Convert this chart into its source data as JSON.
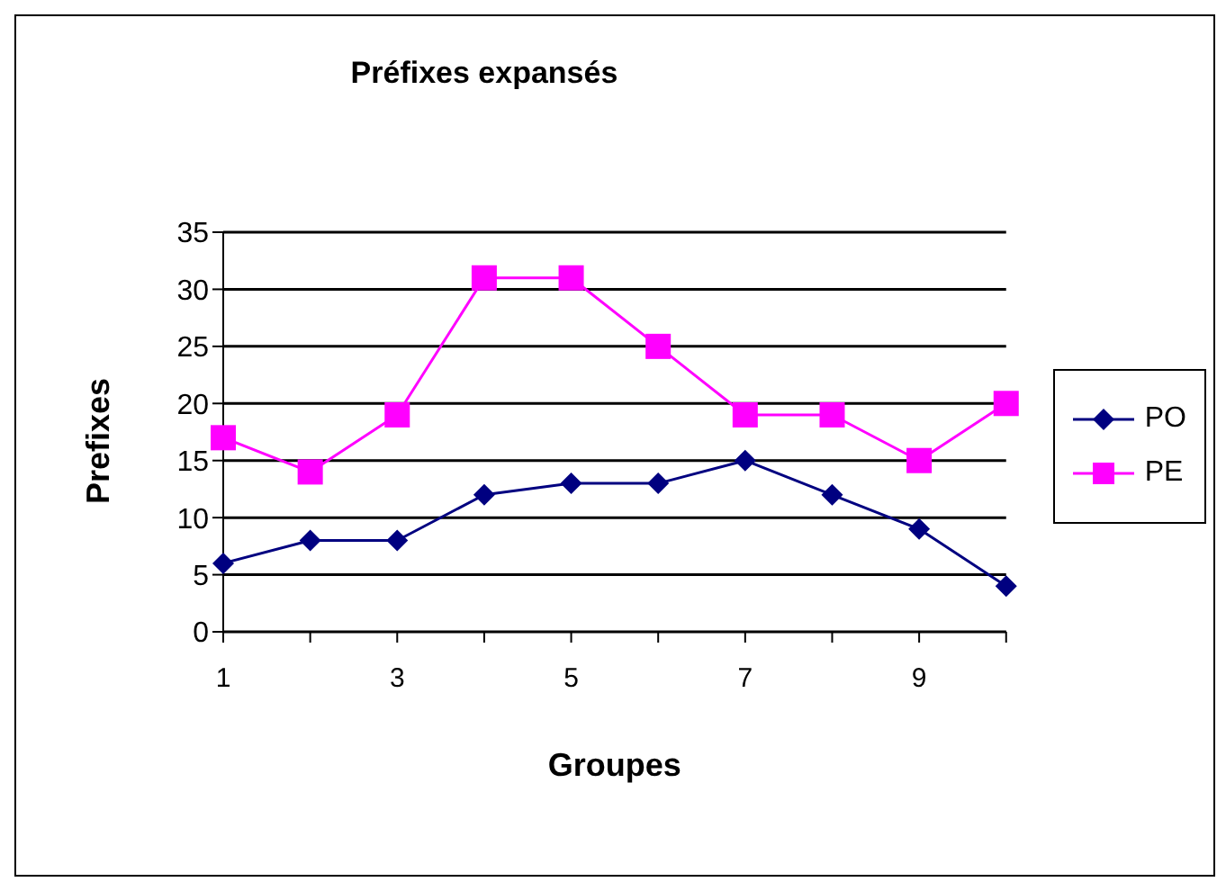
{
  "chart_data": {
    "type": "line",
    "title": "Préfixes expansés",
    "xlabel": "Groupes",
    "ylabel": "Prefixes",
    "categories": [
      "1",
      null,
      "3",
      null,
      "5",
      null,
      "7",
      null,
      "9",
      null
    ],
    "series": [
      {
        "name": "PO",
        "color": "#000080",
        "marker": "diamond",
        "values": [
          6,
          8,
          8,
          12,
          13,
          13,
          15,
          12,
          9,
          4
        ]
      },
      {
        "name": "PE",
        "color": "#ff00ff",
        "marker": "square",
        "values": [
          17,
          14,
          19,
          31,
          31,
          25,
          19,
          19,
          15,
          20
        ]
      }
    ],
    "ylim": [
      0,
      35
    ],
    "yticks": [
      0,
      5,
      10,
      15,
      20,
      25,
      30,
      35
    ],
    "grid": "y",
    "legend": "right"
  }
}
